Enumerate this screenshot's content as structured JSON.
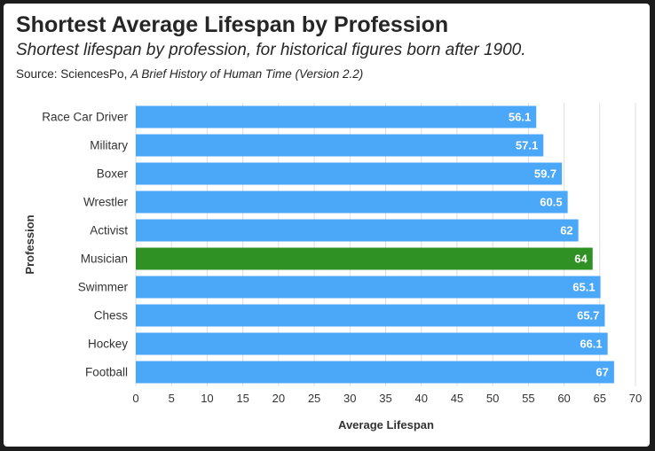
{
  "header": {
    "title": "Shortest Average Lifespan by Profession",
    "subtitle": "Shortest lifespan by profession, for historical figures born after 1900.",
    "source_prefix": "Source: SciencesPo, ",
    "source_title": "A Brief History of Human Time (Version 2.2)"
  },
  "colors": {
    "bar": "#4ba7f7",
    "highlight": "#2f9124",
    "grid": "#dedede",
    "page_background": "#1c1c1c"
  },
  "chart_data": {
    "type": "bar",
    "orientation": "horizontal",
    "categories": [
      "Race Car Driver",
      "Military",
      "Boxer",
      "Wrestler",
      "Activist",
      "Musician",
      "Swimmer",
      "Chess",
      "Hockey",
      "Football"
    ],
    "values": [
      56.1,
      57.1,
      59.7,
      60.5,
      62,
      64,
      65.1,
      65.7,
      66.1,
      67
    ],
    "value_labels": [
      "56.1",
      "57.1",
      "59.7",
      "60.5",
      "62",
      "64",
      "65.1",
      "65.7",
      "66.1",
      "67"
    ],
    "highlighted_category": "Musician",
    "xlabel": "Average Lifespan",
    "ylabel": "Profession",
    "xlim": [
      0,
      70
    ],
    "xticks": [
      0,
      5,
      10,
      15,
      20,
      25,
      30,
      35,
      40,
      45,
      50,
      55,
      60,
      65,
      70
    ],
    "grid": "vertical"
  }
}
